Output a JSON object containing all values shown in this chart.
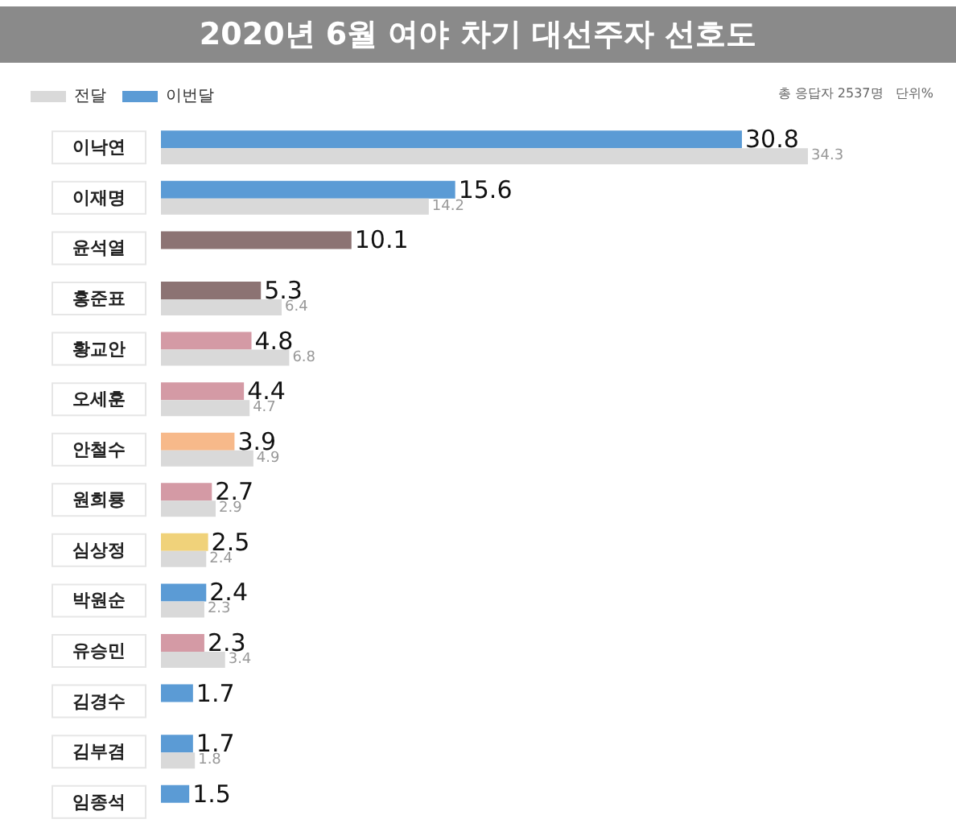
{
  "chart_data": {
    "type": "bar",
    "orientation": "horizontal",
    "title": "2020년 6월 여야 차기 대선주자 선호도",
    "annotations": [
      "총 응답자 2537명   단위%"
    ],
    "categories": [
      "이낙연",
      "이재명",
      "윤석열",
      "홍준표",
      "황교안",
      "오세훈",
      "안철수",
      "원희룡",
      "심상정",
      "박원순",
      "유승민",
      "김경수",
      "김부겸",
      "임종석"
    ],
    "series": [
      {
        "name": "이번달",
        "color": "#5b9bd5",
        "colors": [
          "#5b9bd5",
          "#5b9bd5",
          "#8c7373",
          "#8c7373",
          "#d49aa5",
          "#d49aa5",
          "#f7b98a",
          "#d49aa5",
          "#f0d27a",
          "#5b9bd5",
          "#d49aa5",
          "#5b9bd5",
          "#5b9bd5",
          "#5b9bd5"
        ],
        "values": [
          30.8,
          15.6,
          10.1,
          5.3,
          4.8,
          4.4,
          3.9,
          2.7,
          2.5,
          2.4,
          2.3,
          1.7,
          1.7,
          1.5
        ]
      },
      {
        "name": "전달",
        "color": "#d9d9d9",
        "values": [
          34.3,
          14.2,
          null,
          6.4,
          6.8,
          4.7,
          4.9,
          2.9,
          2.4,
          2.3,
          3.4,
          null,
          1.8,
          null
        ]
      }
    ],
    "tick_labels": "y",
    "data_labels": true,
    "legend": "top left",
    "grid": false
  }
}
